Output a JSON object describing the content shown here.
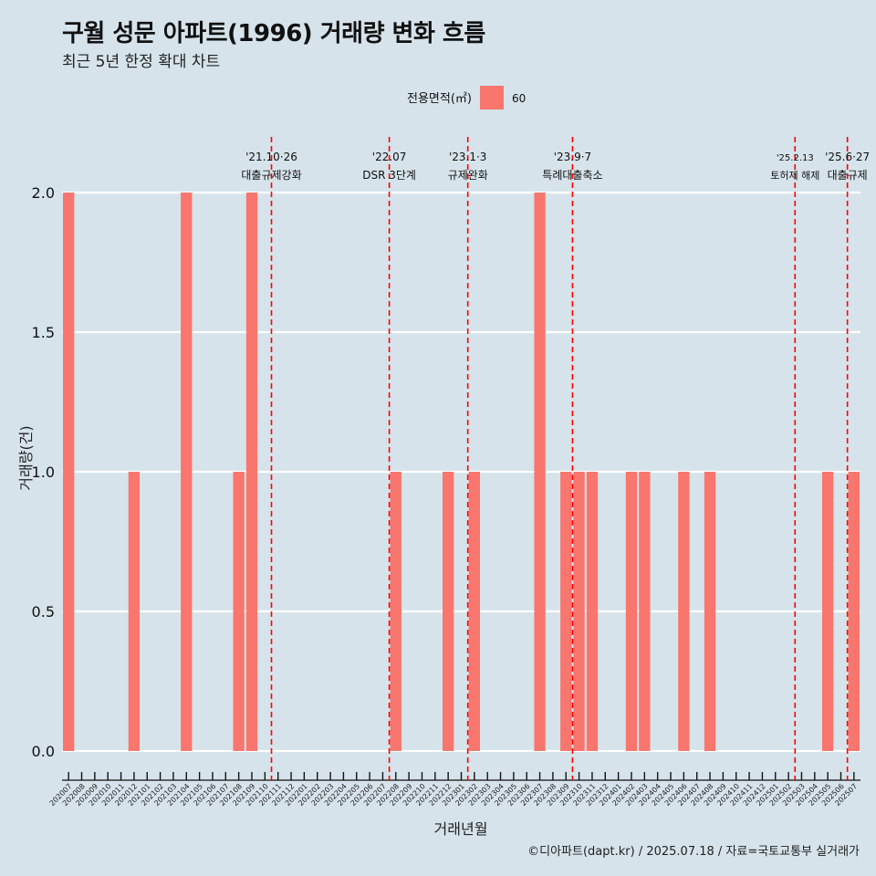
{
  "title": "구월 성문 아파트(1996) 거래량 변화 흐름",
  "subtitle": "최근 5년 한정 확대 차트",
  "caption": "©디아파트(dapt.kr) / 2025.07.18 / 자료=국토교통부 실거래가",
  "legend": {
    "title": "전용면적(㎡)",
    "label": "60",
    "color": "#f8766d"
  },
  "chart_data": {
    "type": "bar",
    "xlabel": "거래년월",
    "ylabel": "거래량(건)",
    "ylim": [
      0,
      2
    ],
    "yticks": [
      "0.0",
      "0.5",
      "1.0",
      "1.5",
      "2.0"
    ],
    "grid": true,
    "legend_position": "top",
    "categories": [
      "202007",
      "202008",
      "202009",
      "202010",
      "202011",
      "202012",
      "202101",
      "202102",
      "202103",
      "202104",
      "202105",
      "202106",
      "202107",
      "202108",
      "202109",
      "202110",
      "202111",
      "202112",
      "202201",
      "202202",
      "202203",
      "202204",
      "202205",
      "202206",
      "202207",
      "202208",
      "202209",
      "202210",
      "202211",
      "202212",
      "202301",
      "202302",
      "202303",
      "202304",
      "202305",
      "202306",
      "202307",
      "202308",
      "202309",
      "202310",
      "202311",
      "202312",
      "202401",
      "202402",
      "202403",
      "202404",
      "202405",
      "202406",
      "202407",
      "202408",
      "202409",
      "202410",
      "202411",
      "202412",
      "202501",
      "202502",
      "202503",
      "202504",
      "202505",
      "202506",
      "202507"
    ],
    "series": [
      {
        "name": "60",
        "color": "#f8766d",
        "values": [
          2,
          0,
          0,
          0,
          0,
          1,
          0,
          0,
          0,
          2,
          0,
          0,
          0,
          1,
          2,
          0,
          0,
          0,
          0,
          0,
          0,
          0,
          0,
          0,
          0,
          1,
          0,
          0,
          0,
          1,
          0,
          1,
          0,
          0,
          0,
          0,
          2,
          0,
          1,
          1,
          1,
          0,
          0,
          1,
          1,
          0,
          0,
          1,
          0,
          1,
          0,
          0,
          0,
          0,
          0,
          0,
          0,
          0,
          1,
          0,
          1
        ]
      }
    ],
    "annotations": [
      {
        "date": "'21.10·26",
        "text": "대출규제강화",
        "x_index": 15.5
      },
      {
        "date": "'22.07",
        "text": "DSR 3단계",
        "x_index": 24.5
      },
      {
        "date": "'23.1·3",
        "text": "규제완화",
        "x_index": 30.5
      },
      {
        "date": "'23.9·7",
        "text": "특례대출축소",
        "x_index": 38.5
      },
      {
        "date": "'25.2.13",
        "text": "토허제 해제",
        "x_index": 55.5
      },
      {
        "date": "'25.6·27",
        "text": "대출규제",
        "x_index": 59.5
      }
    ]
  }
}
